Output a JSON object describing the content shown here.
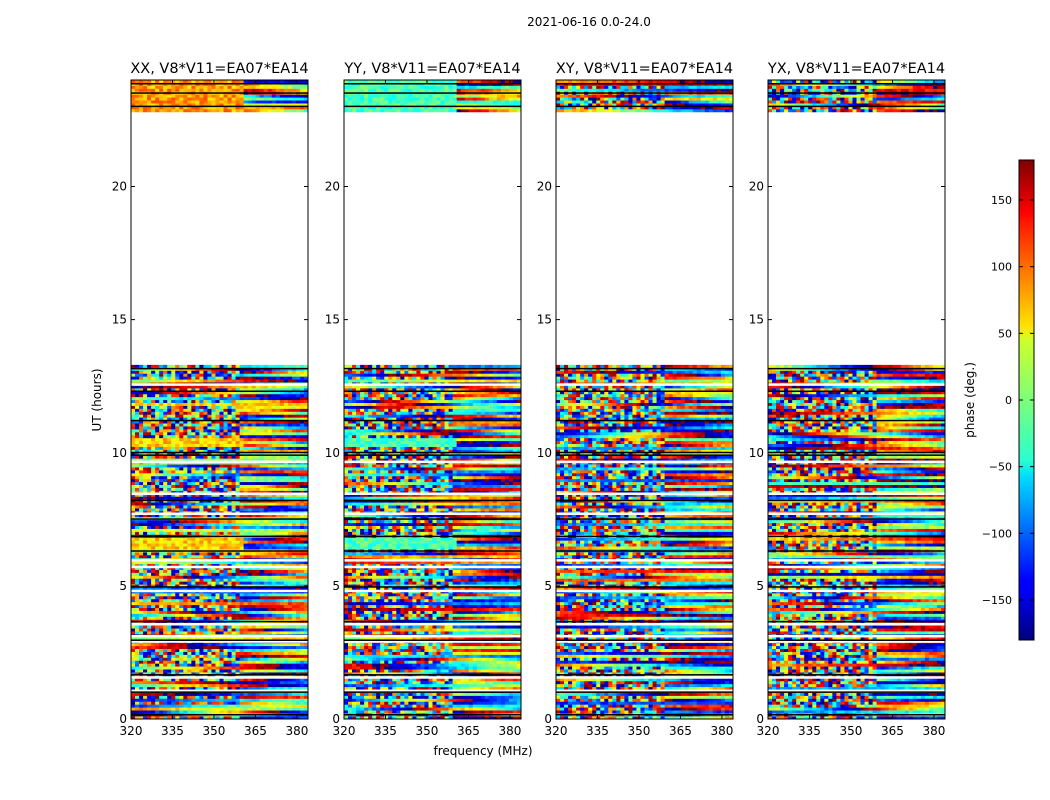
{
  "figure": {
    "suptitle": "2021-06-16 0.0-24.0"
  },
  "chart_data": {
    "type": "heatmap",
    "xlabel": "frequency (MHz)",
    "ylabel": "UT (hours)",
    "xlim": [
      320,
      384
    ],
    "ylim": [
      0,
      24
    ],
    "xticks": [
      320,
      335,
      350,
      365,
      380
    ],
    "yticks": [
      0,
      5,
      10,
      15,
      20
    ],
    "data_bands_hours": [
      [
        0,
        13.3
      ],
      [
        22.8,
        24
      ]
    ],
    "gap_hours": [
      [
        13.3,
        22.8
      ]
    ],
    "panels": [
      {
        "title": "XX, V8*V11=EA07*EA14",
        "pattern": "xx",
        "base_phase": 60
      },
      {
        "title": "YY, V8*V11=EA07*EA14",
        "pattern": "yy",
        "base_phase": -20
      },
      {
        "title": "XY, V8*V11=EA07*EA14",
        "pattern": "cross",
        "base_phase": 0
      },
      {
        "title": "YX, V8*V11=EA07*EA14",
        "pattern": "cross",
        "base_phase": 0
      }
    ],
    "colorbar": {
      "label": "phase (deg.)",
      "colormap": "jet",
      "range": [
        -180,
        180
      ],
      "ticks": [
        -150,
        -100,
        -50,
        0,
        50,
        100,
        150
      ],
      "tick_labels": [
        "−150",
        "−100",
        "−50",
        "0",
        "50",
        "100",
        "150"
      ]
    }
  }
}
